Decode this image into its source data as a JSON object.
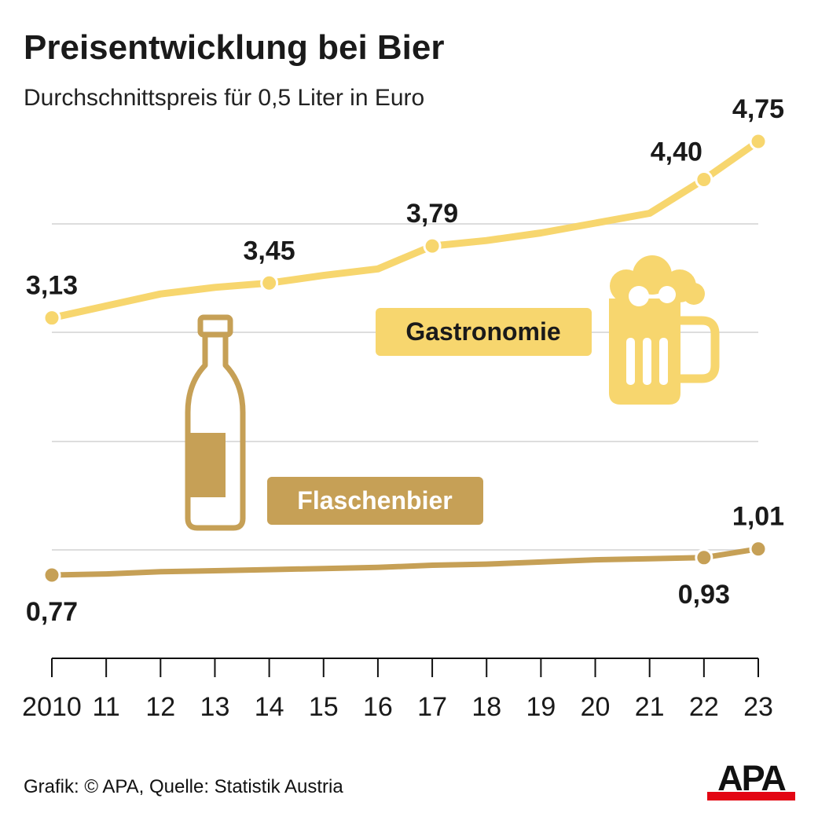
{
  "title": "Preisentwicklung bei Bier",
  "subtitle": "Durchschnittspreis für 0,5 Liter in Euro",
  "source": "Grafik: © APA, Quelle: Statistik Austria",
  "logo_text": "APA",
  "colors": {
    "gastronomie": "#F7D66E",
    "flaschenbier": "#C6A056",
    "grid": "#DDDDDD",
    "axis": "#111111",
    "logo_red": "#E30613"
  },
  "icons": [
    "beer-bottle-icon",
    "beer-mug-icon"
  ],
  "chart_data": {
    "type": "line",
    "title": "Preisentwicklung bei Bier",
    "subtitle": "Durchschnittspreis für 0,5 Liter in Euro",
    "x": [
      2010,
      2011,
      2012,
      2013,
      2014,
      2015,
      2016,
      2017,
      2018,
      2019,
      2020,
      2021,
      2022,
      2023
    ],
    "x_tick_labels": [
      "2010",
      "11",
      "12",
      "13",
      "14",
      "15",
      "16",
      "17",
      "18",
      "19",
      "20",
      "21",
      "22",
      "23"
    ],
    "ylim": [
      0.5,
      5.0
    ],
    "grid": true,
    "series": [
      {
        "name": "Gastronomie",
        "color": "#F7D66E",
        "values": [
          3.13,
          3.24,
          3.35,
          3.41,
          3.45,
          3.52,
          3.58,
          3.79,
          3.84,
          3.91,
          4.0,
          4.09,
          4.4,
          4.75
        ],
        "markers": [
          2010,
          2014,
          2017,
          2022,
          2023
        ],
        "value_labels": [
          {
            "year": 2010,
            "text": "3,13",
            "pos": "above"
          },
          {
            "year": 2014,
            "text": "3,45",
            "pos": "above"
          },
          {
            "year": 2017,
            "text": "3,79",
            "pos": "above"
          },
          {
            "year": 2022,
            "text": "4,40",
            "pos": "above-left"
          },
          {
            "year": 2023,
            "text": "4,75",
            "pos": "above"
          }
        ]
      },
      {
        "name": "Flaschenbier",
        "color": "#C6A056",
        "values": [
          0.77,
          0.78,
          0.8,
          0.81,
          0.82,
          0.83,
          0.84,
          0.86,
          0.87,
          0.89,
          0.91,
          0.92,
          0.93,
          1.01
        ],
        "markers": [
          2010,
          2022,
          2023
        ],
        "value_labels": [
          {
            "year": 2010,
            "text": "0,77",
            "pos": "below"
          },
          {
            "year": 2022,
            "text": "0,93",
            "pos": "below"
          },
          {
            "year": 2023,
            "text": "1,01",
            "pos": "above"
          }
        ]
      }
    ]
  }
}
